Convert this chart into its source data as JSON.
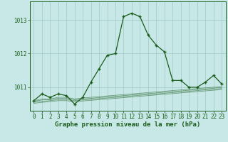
{
  "xlabel": "Graphe pression niveau de la mer (hPa)",
  "x_ticks": [
    0,
    1,
    2,
    3,
    4,
    5,
    6,
    7,
    8,
    9,
    10,
    11,
    12,
    13,
    14,
    15,
    16,
    17,
    18,
    19,
    20,
    21,
    22,
    23
  ],
  "ylim": [
    1010.3,
    1013.55
  ],
  "yticks": [
    1011,
    1012,
    1013
  ],
  "bg_color": "#c8e8e8",
  "grid_color": "#a0c8c8",
  "line_color": "#1a5c1a",
  "main_line": [
    1010.6,
    1010.8,
    1010.7,
    1010.8,
    1010.75,
    1010.5,
    1010.7,
    1011.15,
    1011.55,
    1011.95,
    1012.0,
    1013.1,
    1013.2,
    1013.1,
    1012.55,
    1012.25,
    1012.05,
    1011.2,
    1011.2,
    1011.0,
    1011.0,
    1011.15,
    1011.35,
    1011.1
  ],
  "bg_lines": [
    [
      1010.6,
      1010.65,
      1010.65,
      1010.7,
      1010.7,
      1010.65,
      1010.68,
      1010.7,
      1010.72,
      1010.74,
      1010.76,
      1010.78,
      1010.8,
      1010.82,
      1010.84,
      1010.86,
      1010.88,
      1010.9,
      1010.92,
      1010.94,
      1010.96,
      1010.98,
      1011.0,
      1011.02
    ],
    [
      1010.58,
      1010.62,
      1010.63,
      1010.67,
      1010.67,
      1010.63,
      1010.65,
      1010.67,
      1010.69,
      1010.71,
      1010.73,
      1010.75,
      1010.77,
      1010.79,
      1010.81,
      1010.83,
      1010.85,
      1010.87,
      1010.89,
      1010.91,
      1010.93,
      1010.95,
      1010.97,
      1010.99
    ],
    [
      1010.55,
      1010.58,
      1010.6,
      1010.63,
      1010.63,
      1010.6,
      1010.62,
      1010.64,
      1010.66,
      1010.68,
      1010.7,
      1010.72,
      1010.74,
      1010.76,
      1010.78,
      1010.8,
      1010.82,
      1010.84,
      1010.86,
      1010.88,
      1010.9,
      1010.92,
      1010.94,
      1010.96
    ],
    [
      1010.52,
      1010.55,
      1010.57,
      1010.6,
      1010.6,
      1010.57,
      1010.59,
      1010.61,
      1010.63,
      1010.65,
      1010.67,
      1010.69,
      1010.71,
      1010.73,
      1010.75,
      1010.77,
      1010.79,
      1010.81,
      1010.83,
      1010.85,
      1010.87,
      1010.89,
      1010.91,
      1010.93
    ]
  ],
  "marker": "+",
  "markersize": 3.5,
  "markeredgewidth": 1.0,
  "linewidth": 0.9,
  "faint_linewidth": 0.6,
  "tick_fontsize": 5.5,
  "label_fontsize": 6.5,
  "tick_color": "#1a5c1a",
  "label_color": "#1a5c1a",
  "spine_color": "#1a5c1a"
}
